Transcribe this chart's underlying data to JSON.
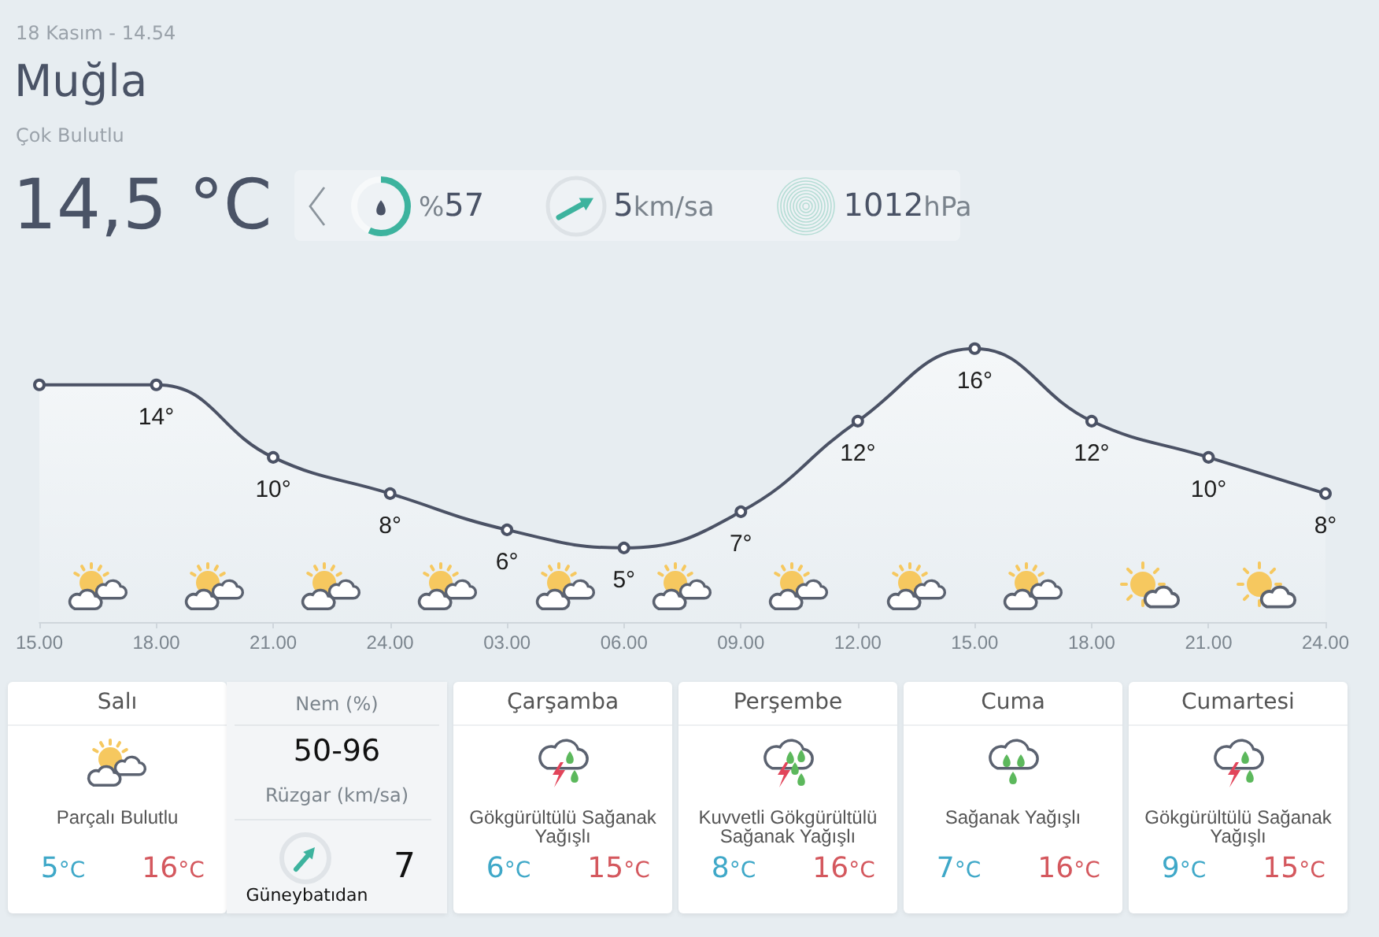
{
  "chart_data": [
    {
      "type": "other",
      "title": "Muğla",
      "subtitle": "Çok Bulutlu",
      "annotations": [
        "18 Kasım - 14.54",
        "14,5 °C",
        "%57",
        "5km/sa",
        "1012hPa"
      ]
    },
    {
      "type": "area",
      "categories": [
        "15.00",
        "18.00",
        "21.00",
        "24.00",
        "03.00",
        "06.00",
        "09.00",
        "12.00",
        "15.00",
        "18.00",
        "21.00",
        "24.00"
      ],
      "values": [
        14,
        14,
        10,
        8,
        6,
        5,
        7,
        12,
        16,
        12,
        10,
        8
      ],
      "value_labels": [
        null,
        "14°",
        "10°",
        "8°",
        "6°",
        "5°",
        "7°",
        "12°",
        "16°",
        "12°",
        "10°",
        "8°"
      ],
      "color": "#4b5265",
      "marker": "circle",
      "tick_labels": "x"
    },
    {
      "type": "other",
      "title": "Salı",
      "annotations": [
        "Parçalı Bulutlu",
        "5°C",
        "16°C"
      ]
    },
    {
      "type": "other",
      "annotations": [
        "Nem (%)",
        "50-96",
        "Rüzgar (km/sa)",
        "7",
        "Güneybatıdan"
      ]
    },
    {
      "type": "other",
      "title": "Çarşamba",
      "annotations": [
        "Gökgürültülü Sağanak Yağışlı",
        "6°C",
        "15°C"
      ]
    },
    {
      "type": "other",
      "title": "Perşembe",
      "annotations": [
        "Kuvvetli Gökgürültülü Sağanak Yağışlı",
        "8°C",
        "16°C"
      ]
    },
    {
      "type": "other",
      "title": "Cuma",
      "annotations": [
        "Sağanak Yağışlı",
        "7°C",
        "16°C"
      ]
    },
    {
      "type": "other",
      "title": "Cumartesi",
      "annotations": [
        "Gökgürültülü Sağanak Yağışlı",
        "9°C",
        "15°C"
      ]
    }
  ]
}
